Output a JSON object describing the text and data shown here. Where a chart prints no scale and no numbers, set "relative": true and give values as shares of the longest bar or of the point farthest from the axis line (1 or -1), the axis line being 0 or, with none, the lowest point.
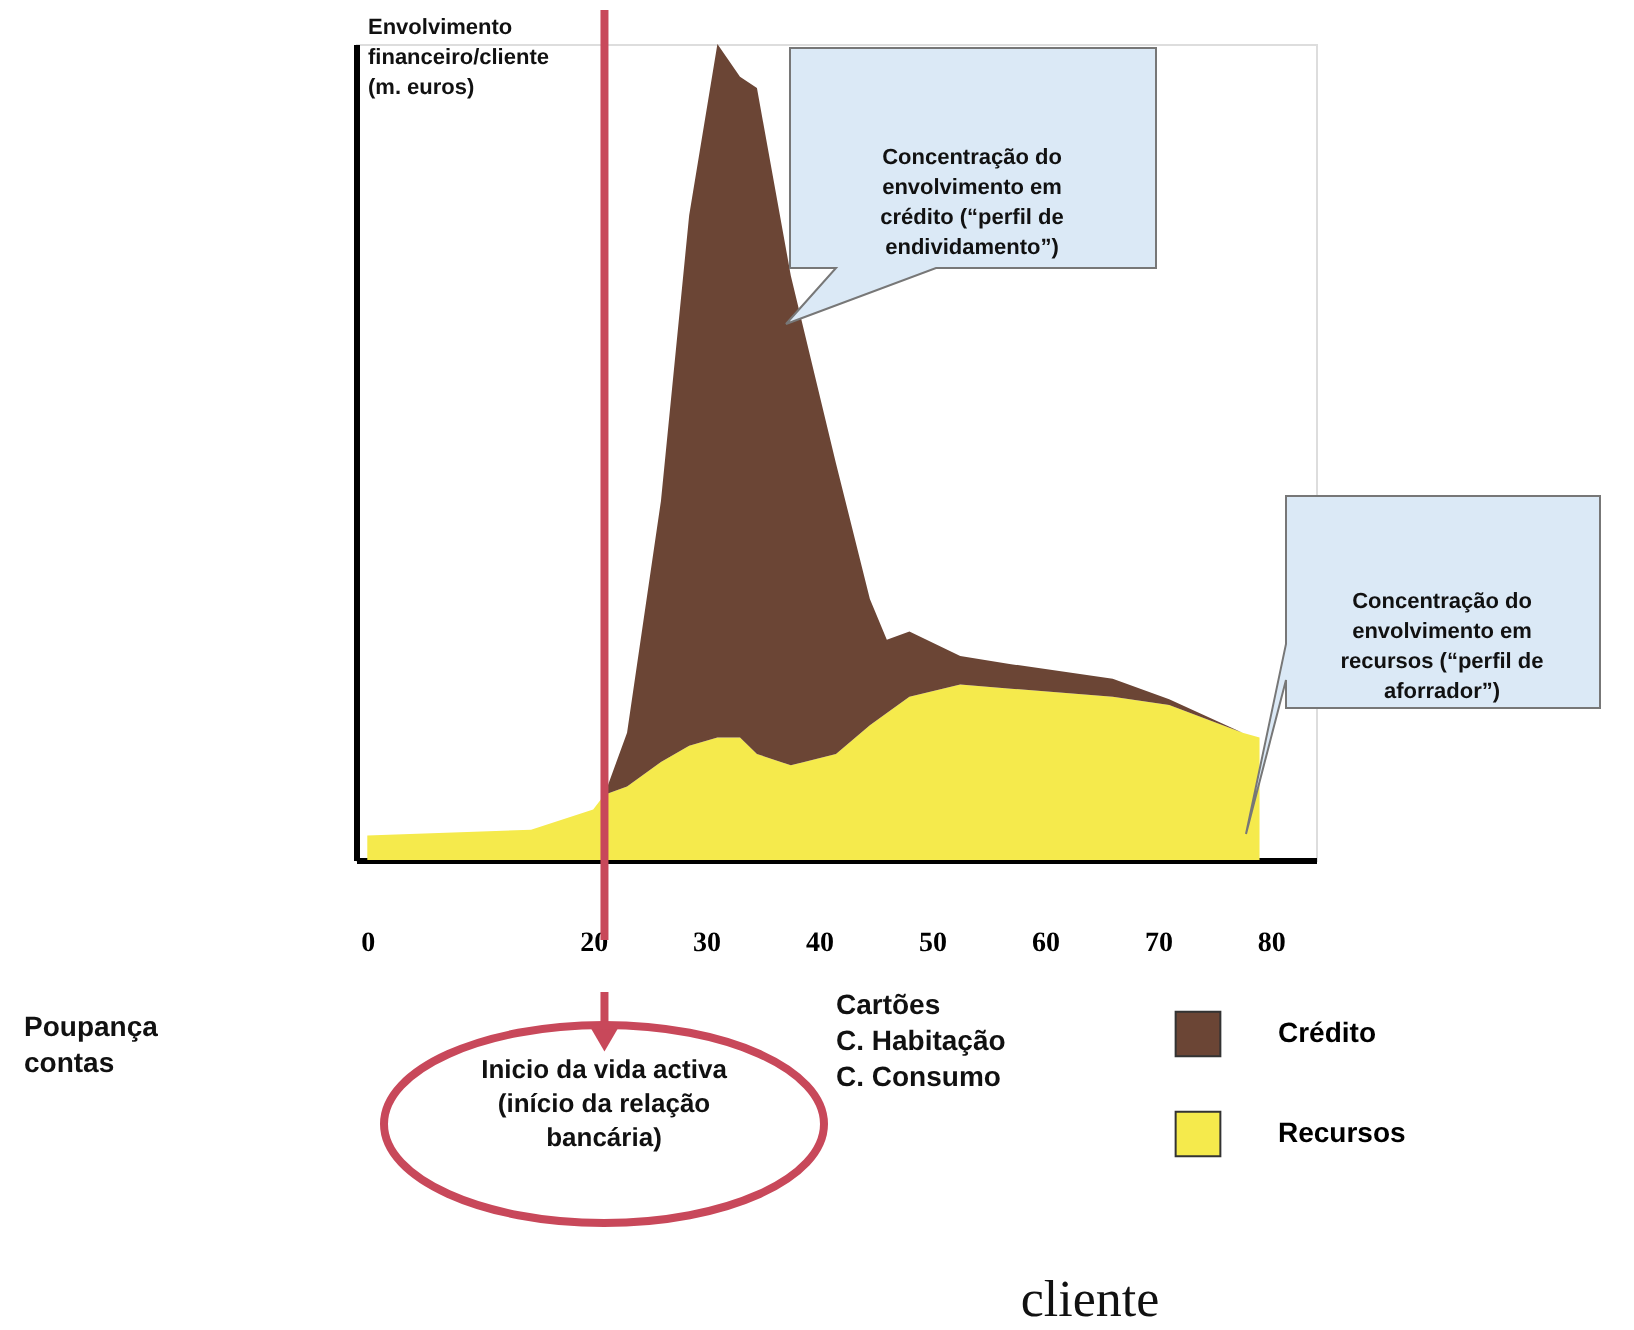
{
  "chart_data": {
    "type": "area",
    "stacked": true,
    "relative": true,
    "ylabel": "Envolvimento\nfinanceiro/cliente\n(m. euros)",
    "x": [
      0,
      14.5,
      20,
      21,
      23,
      26,
      28.5,
      31,
      33,
      34.5,
      37.5,
      41.5,
      44.5,
      46,
      48,
      52.5,
      57,
      66,
      71,
      77.5,
      79
    ],
    "series": [
      {
        "name": "Recursos",
        "color": "#f5ea4c",
        "values": [
          0.03,
          0.037,
          0.062,
          0.08,
          0.09,
          0.12,
          0.14,
          0.15,
          0.15,
          0.13,
          0.116,
          0.13,
          0.165,
          0.18,
          0.2,
          0.215,
          0.21,
          0.2,
          0.19,
          0.156,
          0.15
        ]
      },
      {
        "name": "Crédito",
        "color": "#6b4535",
        "values": [
          0,
          0,
          0,
          0,
          0.066,
          0.32,
          0.65,
          0.85,
          0.81,
          0.816,
          0.6,
          0.356,
          0.155,
          0.09,
          0.08,
          0.035,
          0.03,
          0.022,
          0.007,
          0,
          0
        ]
      }
    ],
    "xlim": [
      -1,
      84
    ],
    "xticks": [
      0,
      20,
      30,
      40,
      50,
      60,
      70,
      80
    ],
    "grid": false,
    "legend": "bottom right",
    "ref_lines": [
      {
        "axis": "x",
        "value": 21,
        "color": "#c8485a"
      }
    ],
    "annotations": [
      "Concentração do\nenvolvimento em\ncrédito (“perfil de\nendividamento”)",
      "Concentração do\nenvolvimento em\nrecursos (“perfil de\naforrador”)",
      "Poupança\ncontas",
      "Cartões\nC. Habitação\nC. Consumo",
      "cliente",
      "Inicio da vida activa\n(início da relação\nbancária)"
    ]
  }
}
